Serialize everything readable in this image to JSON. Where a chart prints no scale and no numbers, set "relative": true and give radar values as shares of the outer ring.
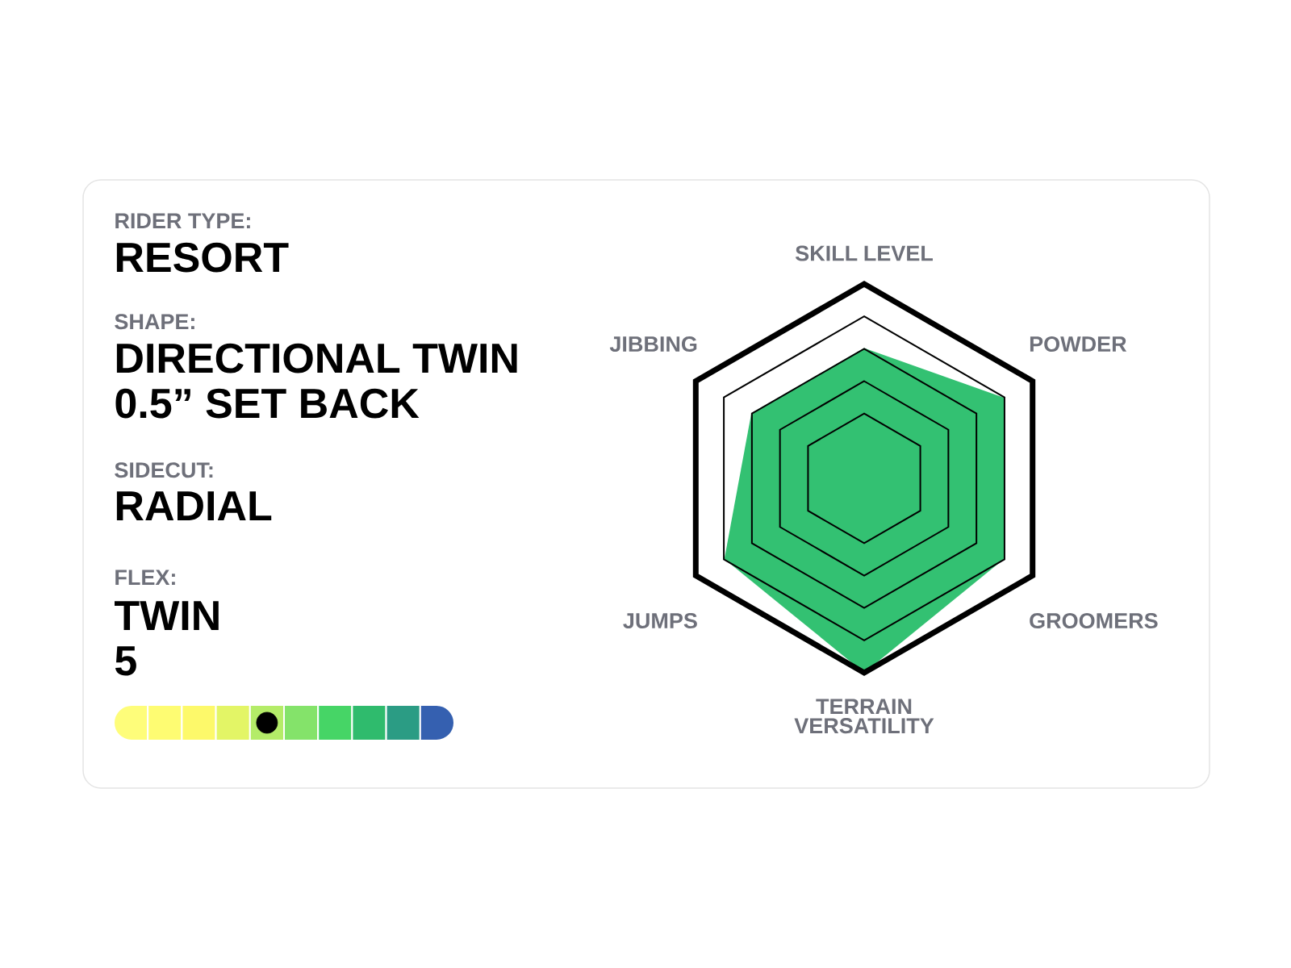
{
  "chart_data": [
    {
      "type": "other",
      "annotations": [
        "RIDER TYPE:",
        "RESORT",
        "SHAPE:",
        "DIRECTIONAL TWIN",
        "0.5” SET BACK",
        "SIDECUT:",
        "RADIAL",
        "FLEX:",
        "TWIN"
      ],
      "categories": [
        null,
        null,
        null,
        null,
        null,
        null,
        null,
        null,
        null,
        null
      ],
      "values": [
        null,
        null,
        null,
        null,
        5,
        null,
        null,
        null,
        null,
        null
      ],
      "value_labels": [
        null,
        null,
        null,
        null,
        "5",
        null,
        null,
        null,
        null,
        null
      ],
      "colors": [
        "#fefd7a",
        "#fefc72",
        "#fdf96a",
        "#e3f566",
        "#b4ec68",
        "#84e36a",
        "#46d566",
        "#2fbb6d",
        "#2b9c84",
        "#3560b0"
      ]
    },
    {
      "type": "radar",
      "categories": [
        "SKILL LEVEL",
        "POWDER",
        "GROOMERS",
        "TERRAIN VERSATILITY",
        "JUMPS",
        "JIBBING"
      ],
      "relative": true,
      "grid": true,
      "series": [
        {
          "color": "#33c172",
          "values": [
            0.67,
            0.83,
            0.83,
            1,
            0.83,
            0.67
          ]
        }
      ]
    }
  ]
}
